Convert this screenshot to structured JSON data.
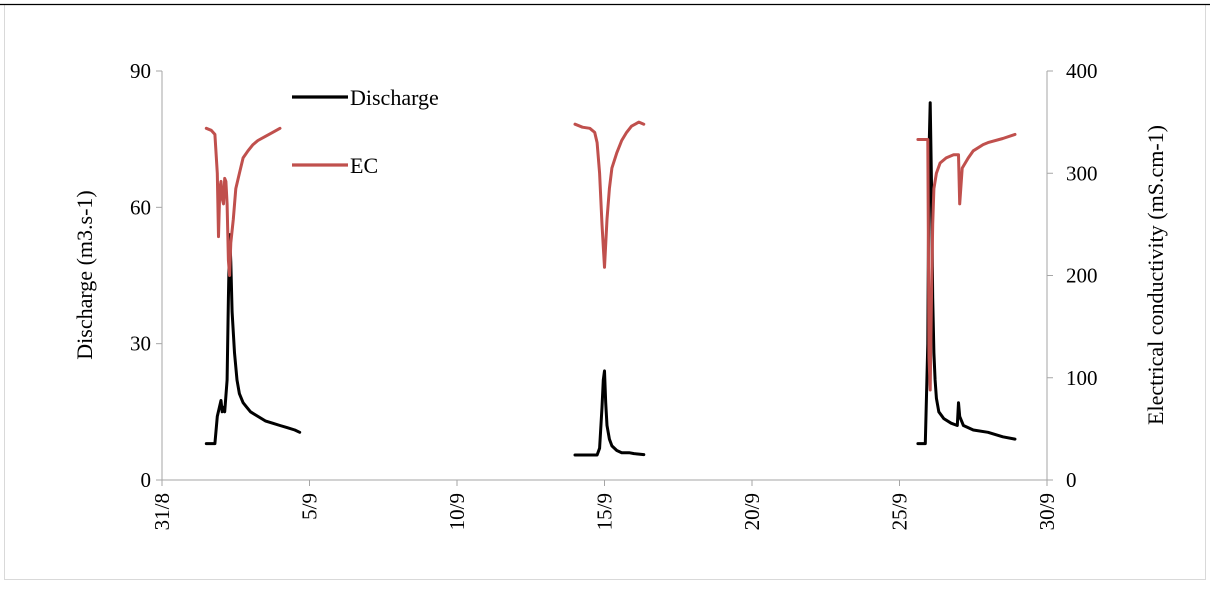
{
  "chart_data": {
    "type": "line",
    "title": "",
    "x_axis": {
      "label": "",
      "unit": "date (d/m)",
      "range": [
        "31/8",
        "30/9"
      ],
      "tick_labels": [
        "31/8",
        "5/9",
        "10/9",
        "15/9",
        "20/9",
        "25/9",
        "30/9"
      ]
    },
    "y_left": {
      "label": "Discharge (m3.s-1)",
      "range": [
        0,
        90
      ],
      "tick_labels": [
        "0",
        "30",
        "60",
        "90"
      ]
    },
    "y_right": {
      "label": "Electrical conductivity (mS.cm-1)",
      "range": [
        0,
        400
      ],
      "tick_labels": [
        "0",
        "100",
        "200",
        "300",
        "400"
      ]
    },
    "grid": false,
    "legend": {
      "placement": "top-left"
    },
    "colors": {
      "Discharge": "#000000",
      "EC": "#c0504d"
    },
    "series": [
      {
        "name": "Discharge",
        "axis": "left",
        "x": [
          "1/9 12:00",
          "1/9 19:00",
          "1/9 21:00",
          "2/9 0:00",
          "2/9 1:00",
          "2/9 2:00",
          "2/9 3:00",
          "2/9 5:00",
          "2/9 6:00",
          "2/9 7:00",
          "2/9 8:00",
          "2/9 9:00",
          "2/9 11:00",
          "2/9 13:00",
          "2/9 15:00",
          "2/9 18:00",
          "2/9 21:00",
          "3/9 0:00",
          "3/9 6:00",
          "3/9 12:00",
          "3/9 18:00",
          "4/9 0:00",
          "4/9 6:00",
          "4/9 12:00",
          "4/9 16:00"
        ],
        "y": [
          8,
          8,
          14,
          17.5,
          15,
          16,
          15,
          22,
          40,
          54,
          48,
          37,
          28,
          22,
          19,
          17,
          16,
          15,
          14,
          13,
          12.5,
          12,
          11.5,
          11,
          10.5
        ],
        "segments": [
          {
            "x": [
              "14/9 0:00",
              "14/9 12:00",
              "14/9 18:00",
              "14/9 20:00",
              "14/9 22:00",
              "14/9 23:00",
              "15/9 0:00",
              "15/9 1:00",
              "15/9 2:00",
              "15/9 4:00",
              "15/9 6:00",
              "15/9 10:00",
              "15/9 14:00",
              "15/9 20:00",
              "16/9 0:00",
              "16/9 4:00",
              "16/9 8:00"
            ],
            "y": [
              5.5,
              5.5,
              5.5,
              7,
              16,
              22,
              24,
              17,
              12,
              9,
              7.5,
              6.5,
              6,
              6,
              5.8,
              5.7,
              5.6
            ]
          },
          {
            "x": [
              "25/9 15:00",
              "25/9 21:00",
              "25/9 23:00",
              "26/9 0:00",
              "26/9 1:00",
              "26/9 2:00",
              "26/9 3:00",
              "26/9 4:00",
              "26/9 5:00",
              "26/9 6:00",
              "26/9 8:00",
              "26/9 12:00",
              "26/9 18:00",
              "26/9 23:00",
              "27/9 0:00",
              "27/9 1:00",
              "27/9 4:00",
              "27/9 12:00",
              "28/9 0:00",
              "28/9 12:00",
              "28/9 22:00"
            ],
            "y": [
              8,
              8,
              30,
              72,
              83,
              65,
              40,
              28,
              22,
              18,
              15,
              13.5,
              12.5,
              12,
              17,
              14,
              12,
              11,
              10.5,
              9.5,
              9
            ]
          }
        ]
      },
      {
        "name": "EC",
        "axis": "right",
        "x": [
          "1/9 12:00",
          "1/9 16:00",
          "1/9 19:00",
          "1/9 21:00",
          "1/9 22:00",
          "1/9 23:00",
          "2/9 0:00",
          "2/9 1:00",
          "2/9 2:00",
          "2/9 3:00",
          "2/9 4:00",
          "2/9 5:00",
          "2/9 6:00",
          "2/9 7:00",
          "2/9 8:00",
          "2/9 10:00",
          "2/9 12:00",
          "2/9 15:00",
          "2/9 18:00",
          "2/9 22:00",
          "3/9 2:00",
          "3/9 6:00",
          "3/9 12:00",
          "3/9 18:00",
          "4/9 0:00"
        ],
        "y": [
          344,
          342,
          338,
          300,
          238,
          285,
          292,
          275,
          270,
          295,
          292,
          270,
          215,
          200,
          232,
          255,
          285,
          300,
          315,
          322,
          328,
          332,
          336,
          340,
          344
        ],
        "segments": [
          {
            "x": [
              "14/9 0:00",
              "14/9 6:00",
              "14/9 12:00",
              "14/9 16:00",
              "14/9 18:00",
              "14/9 20:00",
              "14/9 22:00",
              "15/9 0:00",
              "15/9 2:00",
              "15/9 4:00",
              "15/9 6:00",
              "15/9 10:00",
              "15/9 14:00",
              "15/9 18:00",
              "15/9 22:00",
              "16/9 4:00",
              "16/9 8:00"
            ],
            "y": [
              348,
              345,
              344,
              340,
              330,
              300,
              250,
              208,
              255,
              285,
              305,
              320,
              332,
              340,
              346,
              350,
              348
            ],
            "approx": true
          },
          {
            "x": [
              "25/9 15:00",
              "25/9 23:00",
              "26/9 0:00",
              "26/9 1:00",
              "26/9 2:00",
              "26/9 3:00",
              "26/9 4:00",
              "26/9 6:00",
              "26/9 9:00",
              "26/9 14:00",
              "26/9 20:00",
              "27/9 0:00",
              "27/9 1:00",
              "27/9 3:00",
              "27/9 8:00",
              "27/9 12:00",
              "27/9 20:00",
              "28/9 0:00",
              "28/9 12:00",
              "28/9 22:00"
            ],
            "y": [
              333,
              333,
              120,
              88,
              180,
              250,
              285,
              300,
              310,
              315,
              318,
              318,
              270,
              305,
              315,
              322,
              328,
              330,
              334,
              338
            ]
          }
        ]
      }
    ]
  }
}
